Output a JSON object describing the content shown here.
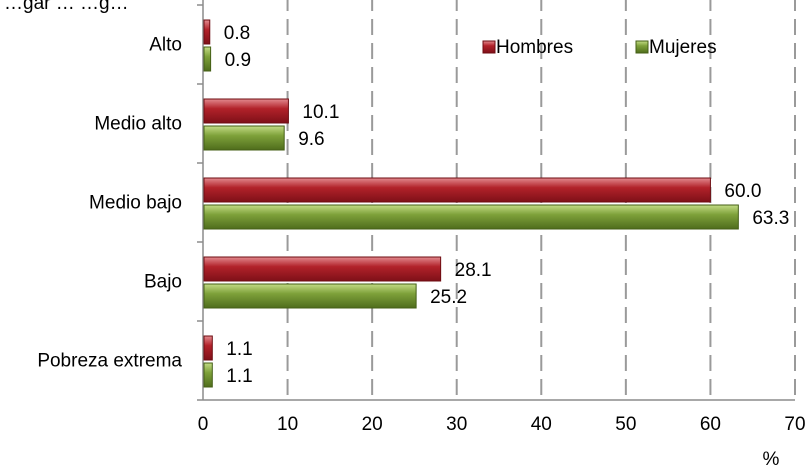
{
  "colors": {
    "hombres": "#b2222a",
    "mujeres": "#7ea13a",
    "grid": "#9a9a9a"
  },
  "chart_data": {
    "type": "bar",
    "orientation": "horizontal",
    "title": "",
    "partial_title": "…gar … …g…",
    "categories": [
      "Alto",
      "Medio alto",
      "Medio bajo",
      "Bajo",
      "Pobreza extrema"
    ],
    "series": [
      {
        "name": "Hombres",
        "values": [
          0.8,
          10.1,
          60.0,
          28.1,
          1.1
        ],
        "labels": [
          "0.8",
          "10.1",
          "60.0",
          "28.1",
          "1.1"
        ]
      },
      {
        "name": "Mujeres",
        "values": [
          0.9,
          9.6,
          63.3,
          25.2,
          1.1
        ],
        "labels": [
          "0.9",
          "9.6",
          "63.3",
          "25.2",
          "1.1"
        ]
      }
    ],
    "xlim": [
      0,
      70
    ],
    "xticks": [
      "0",
      "10",
      "20",
      "30",
      "40",
      "50",
      "60",
      "70"
    ],
    "xlabel": "",
    "unit_label": "%",
    "grid": "vertical-dashed",
    "legend": {
      "placement": "top-right",
      "entries": [
        "Hombres",
        "Mujeres"
      ]
    }
  }
}
